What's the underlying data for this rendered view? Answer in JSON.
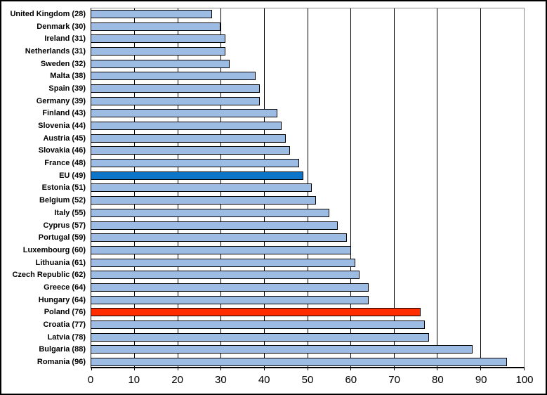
{
  "chart_data": {
    "type": "bar",
    "orientation": "horizontal",
    "title": "",
    "xlabel": "",
    "ylabel": "",
    "xlim": [
      0,
      100
    ],
    "x_ticks": [
      0,
      10,
      20,
      30,
      40,
      50,
      60,
      70,
      80,
      90,
      100
    ],
    "grid": "vertical-gridlines-every-10",
    "legend": "none",
    "categories": [
      "United Kingdom",
      "Denmark",
      "Ireland",
      "Netherlands",
      "Sweden",
      "Malta",
      "Spain",
      "Germany",
      "Finland",
      "Slovenia",
      "Austria",
      "Slovakia",
      "France",
      "EU",
      "Estonia",
      "Belgium",
      "Italy",
      "Cyprus",
      "Portugal",
      "Luxembourg",
      "Lithuania",
      "Czech Republic",
      "Greece",
      "Hungary",
      "Poland",
      "Croatia",
      "Latvia",
      "Bulgaria",
      "Romania"
    ],
    "values": [
      28,
      30,
      31,
      31,
      32,
      38,
      39,
      39,
      43,
      44,
      45,
      46,
      48,
      49,
      51,
      52,
      55,
      57,
      59,
      60,
      61,
      62,
      64,
      64,
      76,
      77,
      78,
      88,
      96
    ],
    "colors": {
      "default_bar": "#9CBCE4",
      "eu_bar": "#0E76C8",
      "poland_bar": "#FF2D00",
      "bar_border": "#000000",
      "gridline": "#000000",
      "plot_border": "#8A8A8A"
    },
    "bars": [
      {
        "label": "United Kingdom (28)",
        "country": "United Kingdom",
        "value": 28,
        "color": "#9CBCE4"
      },
      {
        "label": "Denmark (30)",
        "country": "Denmark",
        "value": 30,
        "color": "#9CBCE4"
      },
      {
        "label": "Ireland (31)",
        "country": "Ireland",
        "value": 31,
        "color": "#9CBCE4"
      },
      {
        "label": "Netherlands (31)",
        "country": "Netherlands",
        "value": 31,
        "color": "#9CBCE4"
      },
      {
        "label": "Sweden (32)",
        "country": "Sweden",
        "value": 32,
        "color": "#9CBCE4"
      },
      {
        "label": "Malta (38)",
        "country": "Malta",
        "value": 38,
        "color": "#9CBCE4"
      },
      {
        "label": "Spain (39)",
        "country": "Spain",
        "value": 39,
        "color": "#9CBCE4"
      },
      {
        "label": "Germany (39)",
        "country": "Germany",
        "value": 39,
        "color": "#9CBCE4"
      },
      {
        "label": "Finland (43)",
        "country": "Finland",
        "value": 43,
        "color": "#9CBCE4"
      },
      {
        "label": "Slovenia (44)",
        "country": "Slovenia",
        "value": 44,
        "color": "#9CBCE4"
      },
      {
        "label": "Austria (45)",
        "country": "Austria",
        "value": 45,
        "color": "#9CBCE4"
      },
      {
        "label": "Slovakia (46)",
        "country": "Slovakia",
        "value": 46,
        "color": "#9CBCE4"
      },
      {
        "label": "France (48)",
        "country": "France",
        "value": 48,
        "color": "#9CBCE4"
      },
      {
        "label": "EU (49)",
        "country": "EU",
        "value": 49,
        "color": "#0E76C8"
      },
      {
        "label": "Estonia (51)",
        "country": "Estonia",
        "value": 51,
        "color": "#9CBCE4"
      },
      {
        "label": "Belgium (52)",
        "country": "Belgium",
        "value": 52,
        "color": "#9CBCE4"
      },
      {
        "label": "Italy (55)",
        "country": "Italy",
        "value": 55,
        "color": "#9CBCE4"
      },
      {
        "label": "Cyprus (57)",
        "country": "Cyprus",
        "value": 57,
        "color": "#9CBCE4"
      },
      {
        "label": "Portugal (59)",
        "country": "Portugal",
        "value": 59,
        "color": "#9CBCE4"
      },
      {
        "label": "Luxembourg (60)",
        "country": "Luxembourg",
        "value": 60,
        "color": "#9CBCE4"
      },
      {
        "label": "Lithuania (61)",
        "country": "Lithuania",
        "value": 61,
        "color": "#9CBCE4"
      },
      {
        "label": "Czech Republic (62)",
        "country": "Czech Republic",
        "value": 62,
        "color": "#9CBCE4"
      },
      {
        "label": "Greece (64)",
        "country": "Greece",
        "value": 64,
        "color": "#9CBCE4"
      },
      {
        "label": "Hungary (64)",
        "country": "Hungary",
        "value": 64,
        "color": "#9CBCE4"
      },
      {
        "label": "Poland (76)",
        "country": "Poland",
        "value": 76,
        "color": "#FF2D00"
      },
      {
        "label": "Croatia (77)",
        "country": "Croatia",
        "value": 77,
        "color": "#9CBCE4"
      },
      {
        "label": "Latvia (78)",
        "country": "Latvia",
        "value": 78,
        "color": "#9CBCE4"
      },
      {
        "label": "Bulgaria (88)",
        "country": "Bulgaria",
        "value": 88,
        "color": "#9CBCE4"
      },
      {
        "label": "Romania (96)",
        "country": "Romania",
        "value": 96,
        "color": "#9CBCE4"
      }
    ]
  }
}
